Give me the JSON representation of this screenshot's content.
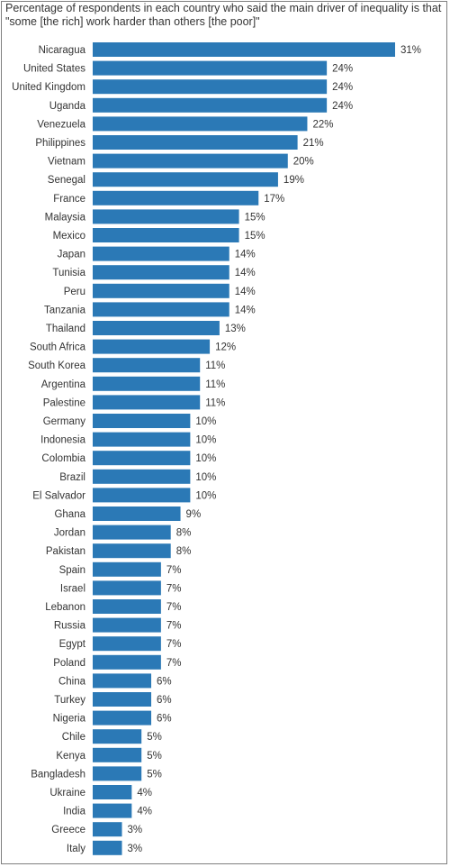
{
  "colors": {
    "bar": "#2b79b6",
    "text": "#333333",
    "border": "#7f7f7f"
  },
  "chart_data": {
    "type": "bar",
    "orientation": "horizontal",
    "title": "Percentage of respondents in each country who said the main driver of inequality is that \"some [the rich] work harder than others [the poor]\"",
    "value_suffix": "%",
    "categories": [
      "Nicaragua",
      "United States",
      "United Kingdom",
      "Uganda",
      "Venezuela",
      "Philippines",
      "Vietnam",
      "Senegal",
      "France",
      "Malaysia",
      "Mexico",
      "Japan",
      "Tunisia",
      "Peru",
      "Tanzania",
      "Thailand",
      "South Africa",
      "South Korea",
      "Argentina",
      "Palestine",
      "Germany",
      "Indonesia",
      "Colombia",
      "Brazil",
      "El Salvador",
      "Ghana",
      "Jordan",
      "Pakistan",
      "Spain",
      "Israel",
      "Lebanon",
      "Russia",
      "Egypt",
      "Poland",
      "China",
      "Turkey",
      "Nigeria",
      "Chile",
      "Kenya",
      "Bangladesh",
      "Ukraine",
      "India",
      "Greece",
      "Italy"
    ],
    "values": [
      31,
      24,
      24,
      24,
      22,
      21,
      20,
      19,
      17,
      15,
      15,
      14,
      14,
      14,
      14,
      13,
      12,
      11,
      11,
      11,
      10,
      10,
      10,
      10,
      10,
      9,
      8,
      8,
      7,
      7,
      7,
      7,
      7,
      7,
      6,
      6,
      6,
      5,
      5,
      5,
      4,
      4,
      3,
      3
    ],
    "xlim": [
      0,
      31
    ],
    "grid": false,
    "legend": "none"
  }
}
